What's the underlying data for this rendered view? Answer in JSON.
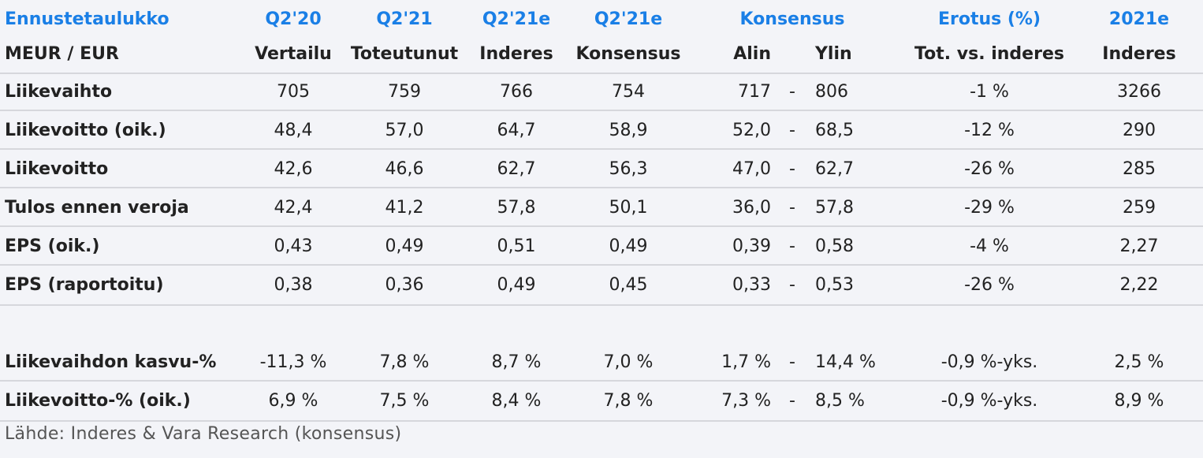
{
  "table": {
    "header1": [
      "Ennustetaulukko",
      "Q2'20",
      "Q2'21",
      "Q2'21e",
      "Q2'21e",
      "Konsensus",
      "Erotus (%)",
      "2021e"
    ],
    "header2": [
      "MEUR / EUR",
      "Vertailu",
      "Toteutunut",
      "Inderes",
      "Konsensus",
      "Alin",
      "Ylin",
      "Tot. vs. inderes",
      "Inderes"
    ],
    "rows": [
      {
        "label": "Liikevaihto",
        "q220": "705",
        "q221": "759",
        "q221e_ind": "766",
        "q221e_kons": "754",
        "alin": "717",
        "dash": "-",
        "ylin": "806",
        "erotus": "-1 %",
        "y2021e": "3266"
      },
      {
        "label": "Liikevoitto (oik.)",
        "q220": "48,4",
        "q221": "57,0",
        "q221e_ind": "64,7",
        "q221e_kons": "58,9",
        "alin": "52,0",
        "dash": "-",
        "ylin": "68,5",
        "erotus": "-12 %",
        "y2021e": "290"
      },
      {
        "label": "Liikevoitto",
        "q220": "42,6",
        "q221": "46,6",
        "q221e_ind": "62,7",
        "q221e_kons": "56,3",
        "alin": "47,0",
        "dash": "-",
        "ylin": "62,7",
        "erotus": "-26 %",
        "y2021e": "285"
      },
      {
        "label": "Tulos ennen veroja",
        "q220": "42,4",
        "q221": "41,2",
        "q221e_ind": "57,8",
        "q221e_kons": "50,1",
        "alin": "36,0",
        "dash": "-",
        "ylin": "57,8",
        "erotus": "-29 %",
        "y2021e": "259"
      },
      {
        "label": "EPS (oik.)",
        "q220": "0,43",
        "q221": "0,49",
        "q221e_ind": "0,51",
        "q221e_kons": "0,49",
        "alin": "0,39",
        "dash": "-",
        "ylin": "0,58",
        "erotus": "-4 %",
        "y2021e": "2,27"
      },
      {
        "label": "EPS (raportoitu)",
        "q220": "0,38",
        "q221": "0,36",
        "q221e_ind": "0,49",
        "q221e_kons": "0,45",
        "alin": "0,33",
        "dash": "-",
        "ylin": "0,53",
        "erotus": "-26 %",
        "y2021e": "2,22"
      }
    ],
    "rows2": [
      {
        "label": "Liikevaihdon kasvu-%",
        "q220": "-11,3 %",
        "q221": "7,8 %",
        "q221e_ind": "8,7 %",
        "q221e_kons": "7,0 %",
        "alin": "1,7 %",
        "dash": "-",
        "ylin": "14,4 %",
        "erotus": "-0,9 %-yks.",
        "y2021e": "2,5 %"
      },
      {
        "label": "Liikevoitto-% (oik.)",
        "q220": "6,9 %",
        "q221": "7,5 %",
        "q221e_ind": "8,4 %",
        "q221e_kons": "7,8 %",
        "alin": "7,3 %",
        "dash": "-",
        "ylin": "8,5 %",
        "erotus": "-0,9 %-yks.",
        "y2021e": "8,9 %"
      }
    ],
    "source": "Lähde: Inderes & Vara Research  (konsensus)"
  },
  "colors": {
    "header_blue": "#1a7fe6",
    "line": "#d6d7dc",
    "background": "#f3f4f8"
  }
}
